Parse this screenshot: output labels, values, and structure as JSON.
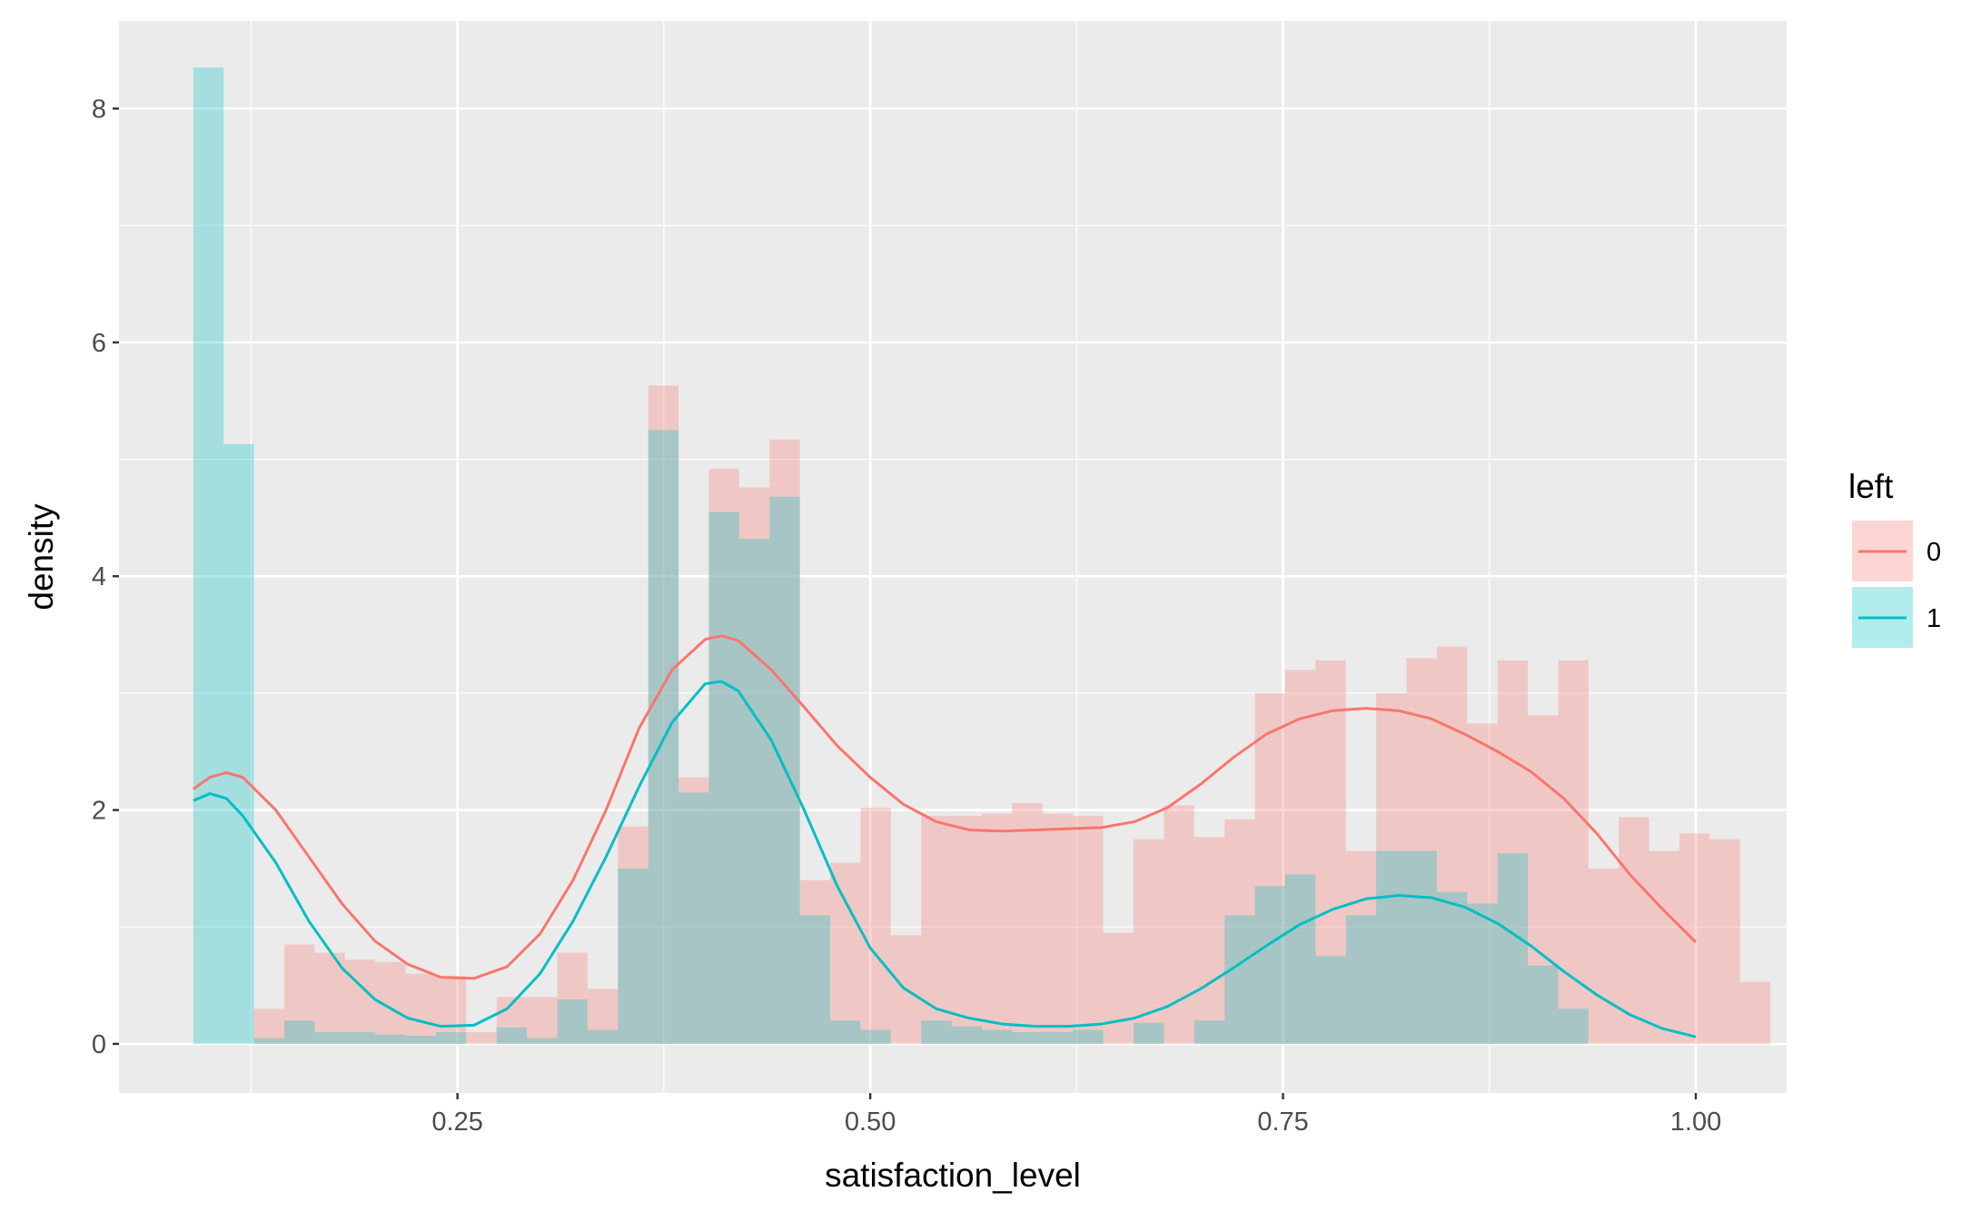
{
  "chart_data": {
    "type": "histogram_density",
    "title": "",
    "xlabel": "satisfaction_level",
    "ylabel": "density",
    "xlim": [
      0.045,
      1.055
    ],
    "ylim": [
      -0.42,
      8.75
    ],
    "x_ticks": [
      0.25,
      0.5,
      0.75,
      1.0
    ],
    "x_tick_labels": [
      "0.25",
      "0.50",
      "0.75",
      "1.00"
    ],
    "y_ticks": [
      0,
      2,
      4,
      6,
      8
    ],
    "y_tick_labels": [
      "0",
      "2",
      "4",
      "6",
      "8"
    ],
    "grid": true,
    "panel_background": "#ebebeb",
    "legend": {
      "title": "left",
      "position": "right",
      "entries": [
        {
          "label": "0",
          "color": "#f8766d"
        },
        {
          "label": "1",
          "color": "#00bfc4"
        }
      ]
    },
    "bin_width": 0.01837,
    "bin_start": 0.09,
    "histograms": [
      {
        "name": "0",
        "color": "#f8766d",
        "values": [
          0,
          0,
          0.3,
          0.85,
          0.78,
          0.72,
          0.7,
          0.6,
          0.58,
          0.1,
          0.4,
          0.4,
          0.78,
          0.47,
          1.86,
          5.63,
          2.28,
          4.92,
          4.76,
          5.17,
          1.4,
          1.55,
          2.02,
          0.93,
          1.95,
          1.95,
          1.97,
          2.06,
          1.97,
          1.95,
          0.95,
          1.75,
          2.04,
          1.77,
          1.92,
          3.0,
          3.2,
          3.28,
          1.65,
          3.0,
          3.3,
          3.4,
          2.74,
          3.28,
          2.81,
          3.28,
          1.5,
          1.94,
          1.65,
          1.8,
          1.75,
          0.53
        ]
      },
      {
        "name": "1",
        "color": "#00bfc4",
        "values": [
          8.35,
          5.13,
          0.05,
          0.2,
          0.1,
          0.1,
          0.08,
          0.07,
          0.1,
          0,
          0.14,
          0.05,
          0.38,
          0.12,
          1.5,
          5.25,
          2.15,
          4.55,
          4.32,
          4.68,
          1.1,
          0.2,
          0.12,
          0,
          0.2,
          0.15,
          0.12,
          0.1,
          0.1,
          0.12,
          0,
          0.18,
          0,
          0.2,
          1.1,
          1.35,
          1.45,
          0.75,
          1.1,
          1.65,
          1.65,
          1.3,
          1.2,
          1.63,
          0.67,
          0.3,
          0,
          0,
          0,
          0,
          0,
          0
        ]
      }
    ],
    "density_series": [
      {
        "name": "0",
        "color": "#f8766d",
        "points": [
          [
            0.09,
            2.18
          ],
          [
            0.1,
            2.28
          ],
          [
            0.11,
            2.32
          ],
          [
            0.12,
            2.28
          ],
          [
            0.14,
            2.0
          ],
          [
            0.16,
            1.6
          ],
          [
            0.18,
            1.2
          ],
          [
            0.2,
            0.88
          ],
          [
            0.22,
            0.68
          ],
          [
            0.24,
            0.57
          ],
          [
            0.26,
            0.56
          ],
          [
            0.28,
            0.66
          ],
          [
            0.3,
            0.94
          ],
          [
            0.32,
            1.4
          ],
          [
            0.34,
            2.0
          ],
          [
            0.36,
            2.7
          ],
          [
            0.38,
            3.2
          ],
          [
            0.4,
            3.46
          ],
          [
            0.41,
            3.49
          ],
          [
            0.42,
            3.45
          ],
          [
            0.44,
            3.2
          ],
          [
            0.46,
            2.88
          ],
          [
            0.48,
            2.55
          ],
          [
            0.5,
            2.28
          ],
          [
            0.52,
            2.05
          ],
          [
            0.54,
            1.9
          ],
          [
            0.56,
            1.83
          ],
          [
            0.58,
            1.82
          ],
          [
            0.6,
            1.83
          ],
          [
            0.62,
            1.84
          ],
          [
            0.64,
            1.85
          ],
          [
            0.66,
            1.9
          ],
          [
            0.68,
            2.02
          ],
          [
            0.7,
            2.22
          ],
          [
            0.72,
            2.45
          ],
          [
            0.74,
            2.65
          ],
          [
            0.76,
            2.78
          ],
          [
            0.78,
            2.85
          ],
          [
            0.8,
            2.87
          ],
          [
            0.82,
            2.85
          ],
          [
            0.84,
            2.78
          ],
          [
            0.86,
            2.65
          ],
          [
            0.88,
            2.5
          ],
          [
            0.9,
            2.33
          ],
          [
            0.92,
            2.1
          ],
          [
            0.94,
            1.8
          ],
          [
            0.96,
            1.45
          ],
          [
            0.98,
            1.15
          ],
          [
            1.0,
            0.87
          ]
        ]
      },
      {
        "name": "1",
        "color": "#00bfc4",
        "points": [
          [
            0.09,
            2.08
          ],
          [
            0.1,
            2.14
          ],
          [
            0.11,
            2.1
          ],
          [
            0.12,
            1.95
          ],
          [
            0.14,
            1.55
          ],
          [
            0.16,
            1.05
          ],
          [
            0.18,
            0.65
          ],
          [
            0.2,
            0.38
          ],
          [
            0.22,
            0.22
          ],
          [
            0.24,
            0.15
          ],
          [
            0.26,
            0.16
          ],
          [
            0.28,
            0.3
          ],
          [
            0.3,
            0.6
          ],
          [
            0.32,
            1.05
          ],
          [
            0.34,
            1.6
          ],
          [
            0.36,
            2.2
          ],
          [
            0.38,
            2.75
          ],
          [
            0.4,
            3.08
          ],
          [
            0.41,
            3.1
          ],
          [
            0.42,
            3.02
          ],
          [
            0.44,
            2.6
          ],
          [
            0.46,
            2.0
          ],
          [
            0.48,
            1.35
          ],
          [
            0.5,
            0.82
          ],
          [
            0.52,
            0.48
          ],
          [
            0.54,
            0.3
          ],
          [
            0.56,
            0.22
          ],
          [
            0.58,
            0.17
          ],
          [
            0.6,
            0.15
          ],
          [
            0.62,
            0.15
          ],
          [
            0.64,
            0.17
          ],
          [
            0.66,
            0.22
          ],
          [
            0.68,
            0.32
          ],
          [
            0.7,
            0.47
          ],
          [
            0.72,
            0.65
          ],
          [
            0.74,
            0.84
          ],
          [
            0.76,
            1.02
          ],
          [
            0.78,
            1.15
          ],
          [
            0.8,
            1.24
          ],
          [
            0.82,
            1.27
          ],
          [
            0.84,
            1.25
          ],
          [
            0.86,
            1.17
          ],
          [
            0.88,
            1.03
          ],
          [
            0.9,
            0.84
          ],
          [
            0.92,
            0.62
          ],
          [
            0.94,
            0.42
          ],
          [
            0.96,
            0.25
          ],
          [
            0.98,
            0.13
          ],
          [
            1.0,
            0.06
          ]
        ]
      }
    ]
  }
}
